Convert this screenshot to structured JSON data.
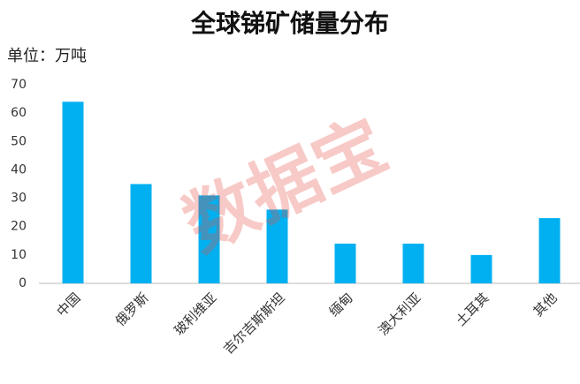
{
  "chart_data": {
    "type": "bar",
    "title": "全球锑矿储量分布",
    "subtitle": "单位：万吨",
    "watermark": "数据宝",
    "categories": [
      "中国",
      "俄罗斯",
      "玻利维亚",
      "吉尔吉斯斯坦",
      "缅甸",
      "澳大利亚",
      "土耳其",
      "其他"
    ],
    "values": [
      64,
      35,
      31,
      26,
      14,
      14,
      10,
      23
    ],
    "color": "#00b0f0",
    "ylim": [
      0,
      70
    ],
    "yticks": [
      0,
      10,
      20,
      30,
      40,
      50,
      60,
      70
    ],
    "grid": false
  }
}
